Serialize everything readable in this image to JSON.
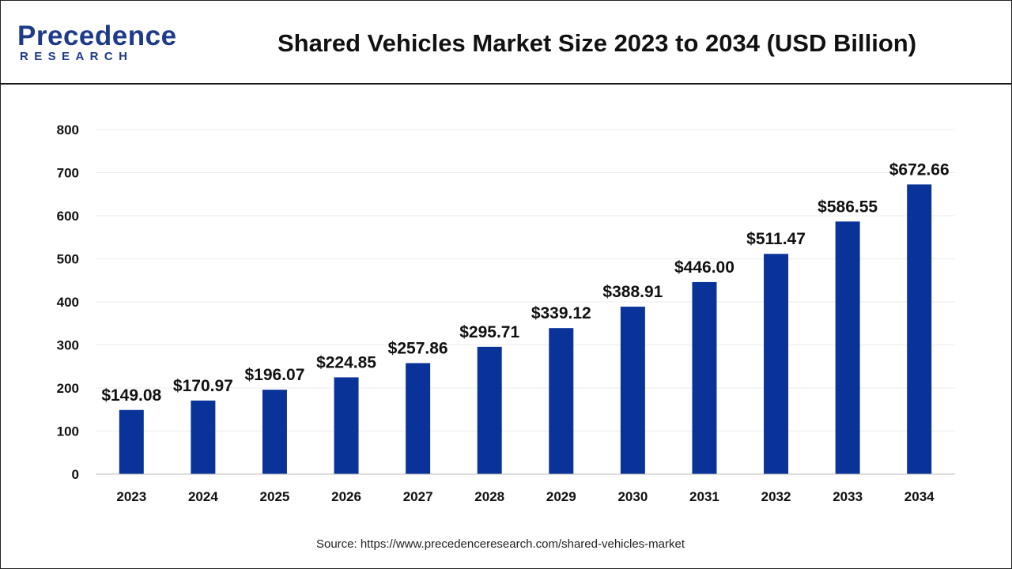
{
  "logo": {
    "brand_p": "P",
    "brand_rest": "recedence",
    "brand_sub": "RESEARCH",
    "color": "#1e3a8a"
  },
  "title": "Shared Vehicles Market Size 2023 to 2034 (USD Billion)",
  "source": "Source: https://www.precedenceresearch.com/shared-vehicles-market",
  "chart_data": {
    "type": "bar",
    "title": "Shared Vehicles Market Size 2023 to 2034 (USD Billion)",
    "xlabel": "",
    "ylabel": "",
    "categories": [
      "2023",
      "2024",
      "2025",
      "2026",
      "2027",
      "2028",
      "2029",
      "2030",
      "2031",
      "2032",
      "2033",
      "2034"
    ],
    "values": [
      149.08,
      170.97,
      196.07,
      224.85,
      257.86,
      295.71,
      339.12,
      388.91,
      446.0,
      511.47,
      586.55,
      672.66
    ],
    "value_labels": [
      "$149.08",
      "$170.97",
      "$196.07",
      "$224.85",
      "$257.86",
      "$295.71",
      "$339.12",
      "$388.91",
      "$446.00",
      "$511.47",
      "$586.55",
      "$672.66"
    ],
    "ylim": [
      0,
      800
    ],
    "yticks": [
      0,
      100,
      200,
      300,
      400,
      500,
      600,
      700,
      800
    ],
    "grid": true,
    "legend": "none",
    "bar_color": "#0a3399"
  }
}
